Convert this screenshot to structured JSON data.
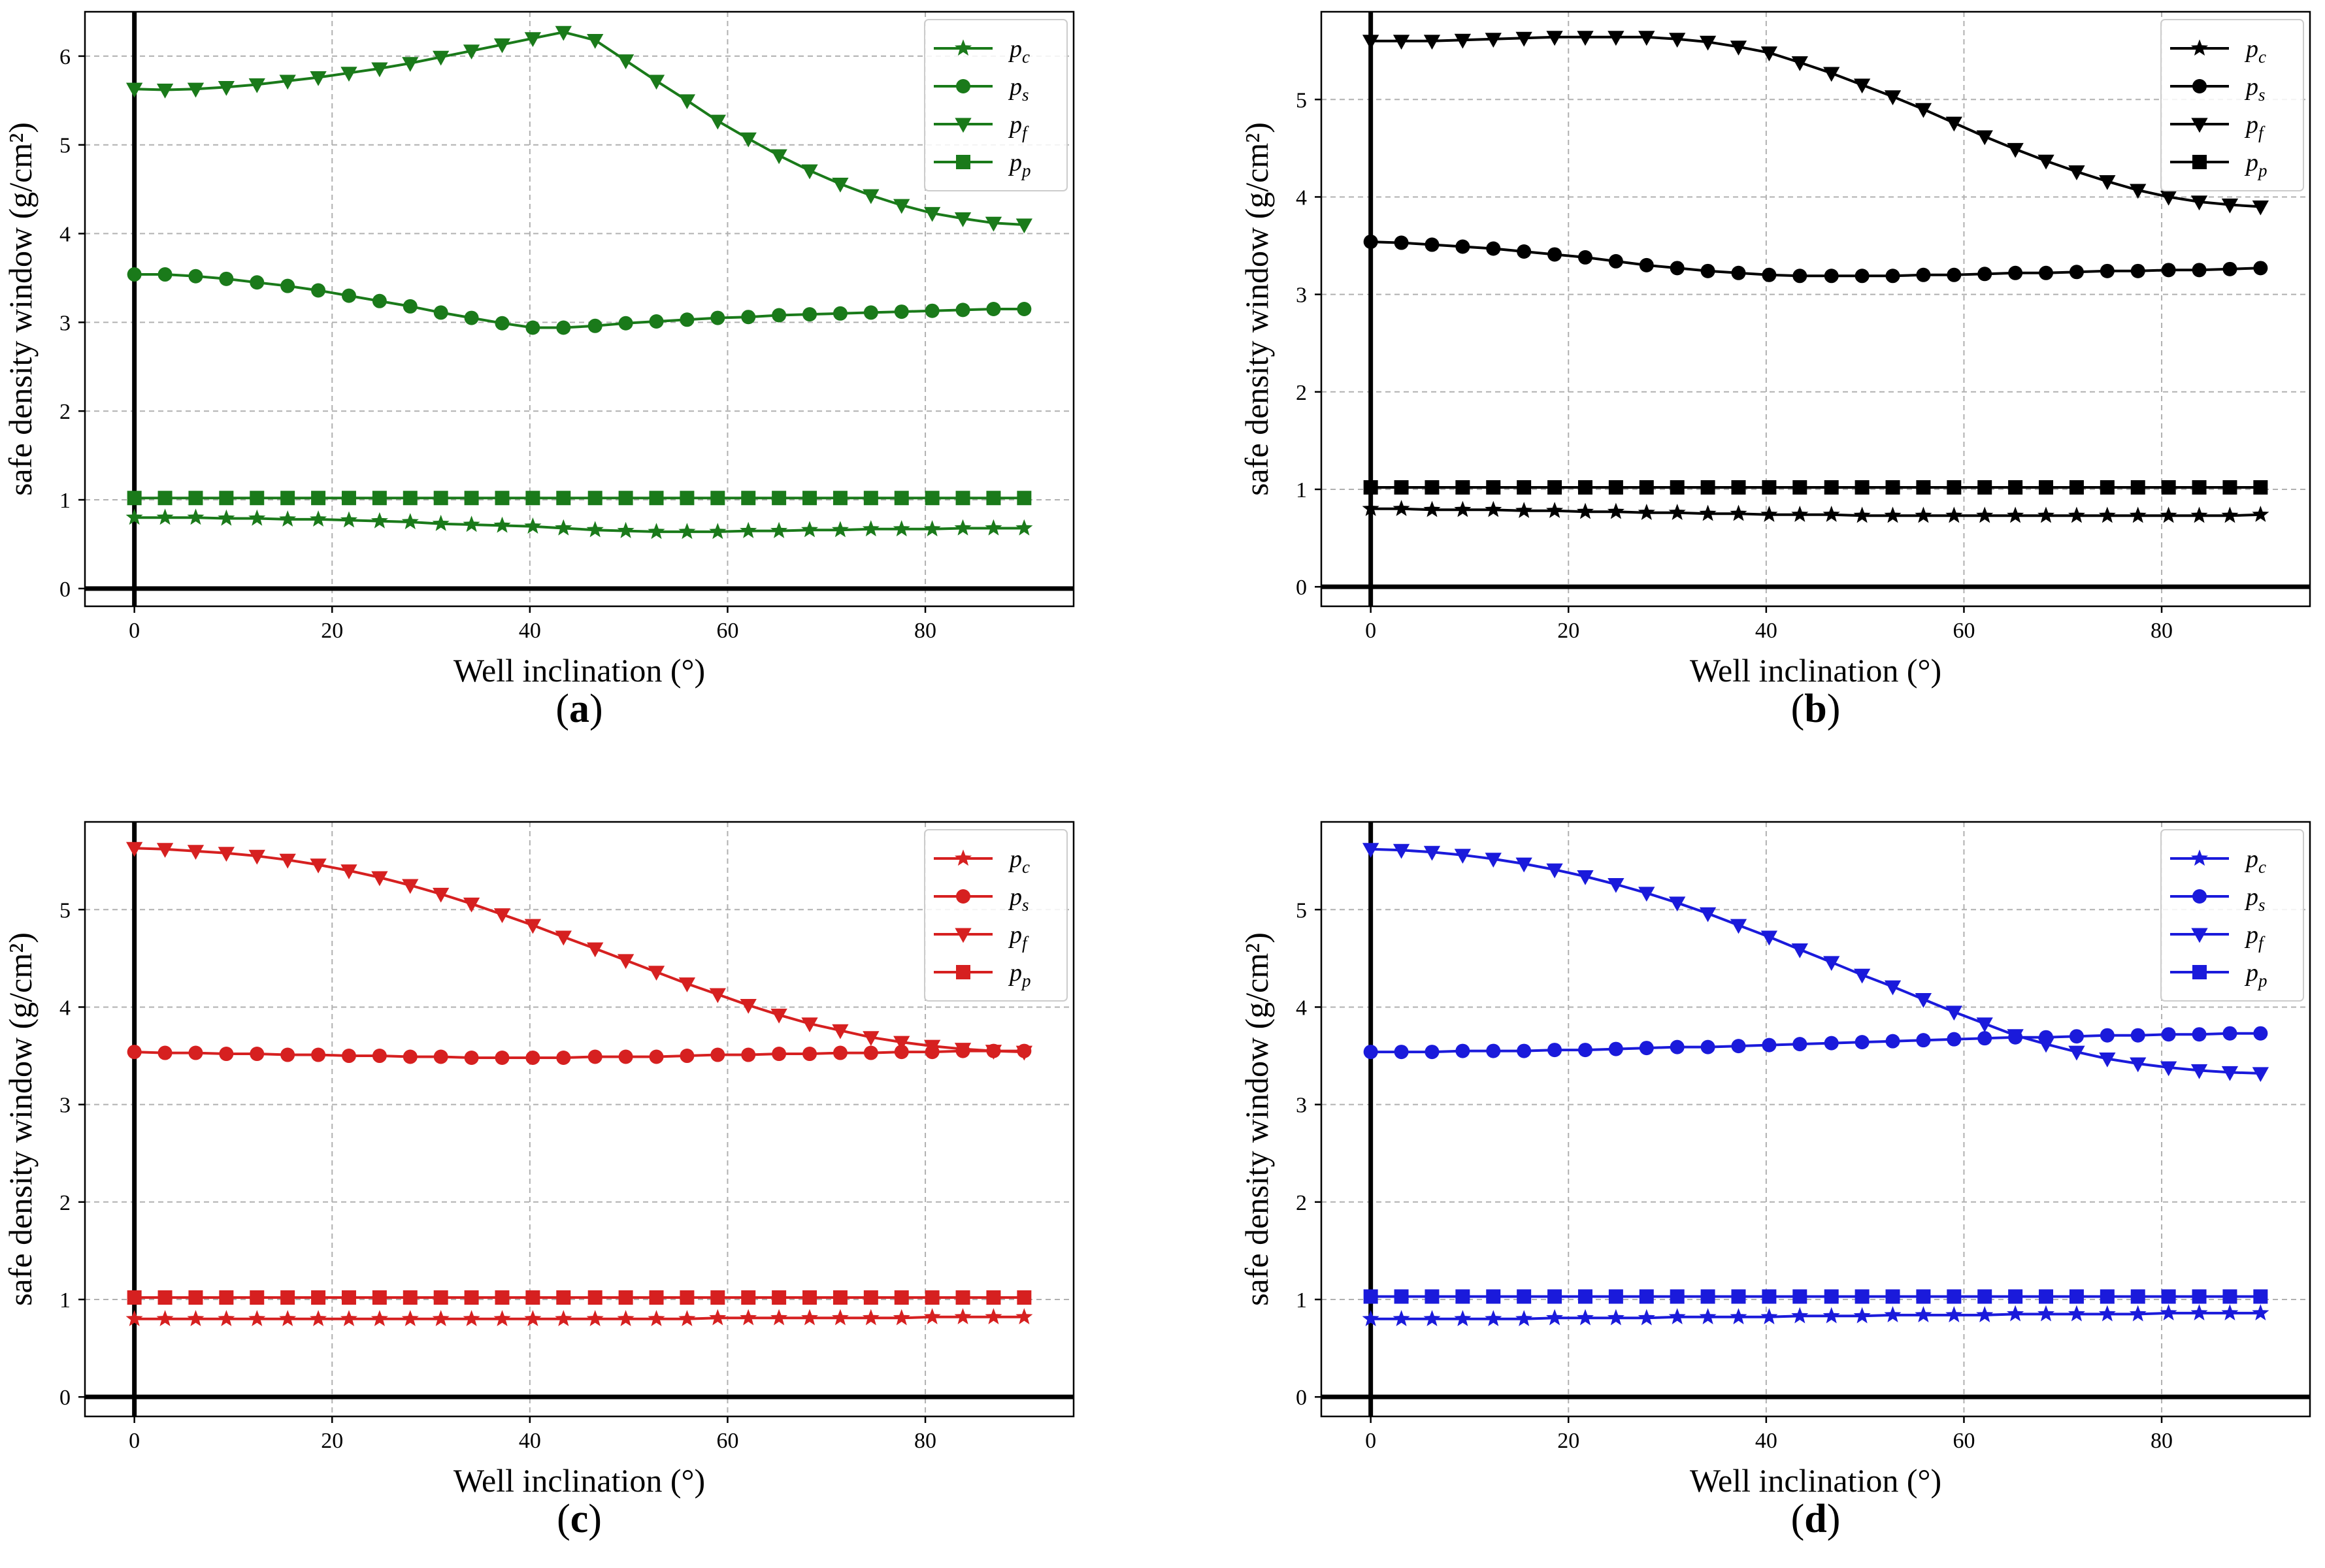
{
  "chart_data": [
    {
      "id": "a",
      "panel_label": "a",
      "type": "line",
      "color": "#1a7a1a",
      "xlabel": "Well inclination (°)",
      "ylabel": "safe density window (g/cm²)",
      "xlim": [
        -5,
        95
      ],
      "ylim": [
        -0.2,
        6.5
      ],
      "xticks": [
        0,
        20,
        40,
        60,
        80
      ],
      "yticks": [
        0,
        1,
        2,
        3,
        4,
        5,
        6
      ],
      "x": [
        0,
        3.1,
        6.2,
        9.3,
        12.4,
        15.5,
        18.6,
        21.7,
        24.8,
        27.9,
        31.0,
        34.1,
        37.2,
        40.3,
        43.4,
        46.6,
        49.7,
        52.8,
        55.9,
        59.0,
        62.1,
        65.2,
        68.3,
        71.4,
        74.5,
        77.6,
        80.7,
        83.8,
        86.9,
        90.0
      ],
      "series": [
        {
          "name": "pc",
          "label_base": "p",
          "label_sub": "c",
          "marker": "star",
          "values": [
            0.8,
            0.8,
            0.8,
            0.79,
            0.79,
            0.78,
            0.78,
            0.77,
            0.76,
            0.75,
            0.73,
            0.72,
            0.71,
            0.7,
            0.68,
            0.66,
            0.65,
            0.64,
            0.64,
            0.64,
            0.65,
            0.65,
            0.66,
            0.66,
            0.67,
            0.67,
            0.67,
            0.68,
            0.68,
            0.68
          ]
        },
        {
          "name": "ps",
          "label_base": "p",
          "label_sub": "s",
          "marker": "circle",
          "values": [
            3.54,
            3.54,
            3.52,
            3.49,
            3.45,
            3.41,
            3.36,
            3.3,
            3.24,
            3.18,
            3.11,
            3.05,
            2.99,
            2.94,
            2.94,
            2.96,
            2.99,
            3.01,
            3.03,
            3.05,
            3.06,
            3.08,
            3.09,
            3.1,
            3.11,
            3.12,
            3.13,
            3.14,
            3.15,
            3.15
          ]
        },
        {
          "name": "pf",
          "label_base": "p",
          "label_sub": "f",
          "marker": "triangle-down",
          "values": [
            5.63,
            5.62,
            5.63,
            5.65,
            5.68,
            5.72,
            5.76,
            5.81,
            5.86,
            5.92,
            5.99,
            6.06,
            6.13,
            6.2,
            6.27,
            6.18,
            5.95,
            5.72,
            5.5,
            5.27,
            5.07,
            4.88,
            4.71,
            4.56,
            4.43,
            4.32,
            4.23,
            4.17,
            4.12,
            4.1
          ]
        },
        {
          "name": "pp",
          "label_base": "p",
          "label_sub": "p",
          "marker": "square",
          "values": [
            1.02,
            1.02,
            1.02,
            1.02,
            1.02,
            1.02,
            1.02,
            1.02,
            1.02,
            1.02,
            1.02,
            1.02,
            1.02,
            1.02,
            1.02,
            1.02,
            1.02,
            1.02,
            1.02,
            1.02,
            1.02,
            1.02,
            1.02,
            1.02,
            1.02,
            1.02,
            1.02,
            1.02,
            1.02,
            1.02
          ]
        }
      ]
    },
    {
      "id": "b",
      "panel_label": "b",
      "type": "line",
      "color": "#000000",
      "xlabel": "Well inclination (°)",
      "ylabel": "safe density window (g/cm²)",
      "xlim": [
        -5,
        95
      ],
      "ylim": [
        -0.2,
        5.9
      ],
      "xticks": [
        0,
        20,
        40,
        60,
        80
      ],
      "yticks": [
        0,
        1,
        2,
        3,
        4,
        5
      ],
      "x": [
        0,
        3.1,
        6.2,
        9.3,
        12.4,
        15.5,
        18.6,
        21.7,
        24.8,
        27.9,
        31.0,
        34.1,
        37.2,
        40.3,
        43.4,
        46.6,
        49.7,
        52.8,
        55.9,
        59.0,
        62.1,
        65.2,
        68.3,
        71.4,
        74.5,
        77.6,
        80.7,
        83.8,
        86.9,
        90.0
      ],
      "series": [
        {
          "name": "pc",
          "label_base": "p",
          "label_sub": "c",
          "marker": "star",
          "values": [
            0.8,
            0.8,
            0.79,
            0.79,
            0.79,
            0.78,
            0.78,
            0.77,
            0.77,
            0.76,
            0.76,
            0.75,
            0.75,
            0.74,
            0.74,
            0.74,
            0.73,
            0.73,
            0.73,
            0.73,
            0.73,
            0.73,
            0.73,
            0.73,
            0.73,
            0.73,
            0.73,
            0.73,
            0.73,
            0.74
          ]
        },
        {
          "name": "ps",
          "label_base": "p",
          "label_sub": "s",
          "marker": "circle",
          "values": [
            3.54,
            3.53,
            3.51,
            3.49,
            3.47,
            3.44,
            3.41,
            3.38,
            3.34,
            3.3,
            3.27,
            3.24,
            3.22,
            3.2,
            3.19,
            3.19,
            3.19,
            3.19,
            3.2,
            3.2,
            3.21,
            3.22,
            3.22,
            3.23,
            3.24,
            3.24,
            3.25,
            3.25,
            3.26,
            3.27
          ]
        },
        {
          "name": "pf",
          "label_base": "p",
          "label_sub": "f",
          "marker": "triangle-down",
          "values": [
            5.6,
            5.6,
            5.6,
            5.61,
            5.62,
            5.63,
            5.64,
            5.64,
            5.64,
            5.64,
            5.62,
            5.59,
            5.54,
            5.48,
            5.38,
            5.27,
            5.15,
            5.03,
            4.9,
            4.76,
            4.62,
            4.49,
            4.37,
            4.26,
            4.16,
            4.07,
            4.0,
            3.95,
            3.92,
            3.9
          ]
        },
        {
          "name": "pp",
          "label_base": "p",
          "label_sub": "p",
          "marker": "square",
          "values": [
            1.02,
            1.02,
            1.02,
            1.02,
            1.02,
            1.02,
            1.02,
            1.02,
            1.02,
            1.02,
            1.02,
            1.02,
            1.02,
            1.02,
            1.02,
            1.02,
            1.02,
            1.02,
            1.02,
            1.02,
            1.02,
            1.02,
            1.02,
            1.02,
            1.02,
            1.02,
            1.02,
            1.02,
            1.02,
            1.02
          ]
        }
      ]
    },
    {
      "id": "c",
      "panel_label": "c",
      "type": "line",
      "color": "#d62020",
      "xlabel": "Well inclination (°)",
      "ylabel": "safe density window (g/cm²)",
      "xlim": [
        -5,
        95
      ],
      "ylim": [
        -0.2,
        5.9
      ],
      "xticks": [
        0,
        20,
        40,
        60,
        80
      ],
      "yticks": [
        0,
        1,
        2,
        3,
        4,
        5
      ],
      "x": [
        0,
        3.1,
        6.2,
        9.3,
        12.4,
        15.5,
        18.6,
        21.7,
        24.8,
        27.9,
        31.0,
        34.1,
        37.2,
        40.3,
        43.4,
        46.6,
        49.7,
        52.8,
        55.9,
        59.0,
        62.1,
        65.2,
        68.3,
        71.4,
        74.5,
        77.6,
        80.7,
        83.8,
        86.9,
        90.0
      ],
      "series": [
        {
          "name": "pc",
          "label_base": "p",
          "label_sub": "c",
          "marker": "star",
          "values": [
            0.8,
            0.8,
            0.8,
            0.8,
            0.8,
            0.8,
            0.8,
            0.8,
            0.8,
            0.8,
            0.8,
            0.8,
            0.8,
            0.8,
            0.8,
            0.8,
            0.8,
            0.8,
            0.8,
            0.81,
            0.81,
            0.81,
            0.81,
            0.81,
            0.81,
            0.81,
            0.82,
            0.82,
            0.82,
            0.82
          ]
        },
        {
          "name": "ps",
          "label_base": "p",
          "label_sub": "s",
          "marker": "circle",
          "values": [
            3.54,
            3.53,
            3.53,
            3.52,
            3.52,
            3.51,
            3.51,
            3.5,
            3.5,
            3.49,
            3.49,
            3.48,
            3.48,
            3.48,
            3.48,
            3.49,
            3.49,
            3.49,
            3.5,
            3.51,
            3.51,
            3.52,
            3.52,
            3.53,
            3.53,
            3.54,
            3.54,
            3.55,
            3.55,
            3.55
          ]
        },
        {
          "name": "pf",
          "label_base": "p",
          "label_sub": "f",
          "marker": "triangle-down",
          "values": [
            5.63,
            5.62,
            5.6,
            5.58,
            5.55,
            5.51,
            5.46,
            5.4,
            5.33,
            5.25,
            5.16,
            5.06,
            4.95,
            4.84,
            4.72,
            4.6,
            4.48,
            4.36,
            4.24,
            4.13,
            4.02,
            3.92,
            3.83,
            3.76,
            3.69,
            3.64,
            3.6,
            3.57,
            3.55,
            3.54
          ]
        },
        {
          "name": "pp",
          "label_base": "p",
          "label_sub": "p",
          "marker": "square",
          "values": [
            1.02,
            1.02,
            1.02,
            1.02,
            1.02,
            1.02,
            1.02,
            1.02,
            1.02,
            1.02,
            1.02,
            1.02,
            1.02,
            1.02,
            1.02,
            1.02,
            1.02,
            1.02,
            1.02,
            1.02,
            1.02,
            1.02,
            1.02,
            1.02,
            1.02,
            1.02,
            1.02,
            1.02,
            1.02,
            1.02
          ]
        }
      ]
    },
    {
      "id": "d",
      "panel_label": "d",
      "type": "line",
      "color": "#1a1adb",
      "xlabel": "Well inclination (°)",
      "ylabel": "safe density window (g/cm²)",
      "xlim": [
        -5,
        95
      ],
      "ylim": [
        -0.2,
        5.9
      ],
      "xticks": [
        0,
        20,
        40,
        60,
        80
      ],
      "yticks": [
        0,
        1,
        2,
        3,
        4,
        5
      ],
      "x": [
        0,
        3.1,
        6.2,
        9.3,
        12.4,
        15.5,
        18.6,
        21.7,
        24.8,
        27.9,
        31.0,
        34.1,
        37.2,
        40.3,
        43.4,
        46.6,
        49.7,
        52.8,
        55.9,
        59.0,
        62.1,
        65.2,
        68.3,
        71.4,
        74.5,
        77.6,
        80.7,
        83.8,
        86.9,
        90.0
      ],
      "series": [
        {
          "name": "pc",
          "label_base": "p",
          "label_sub": "c",
          "marker": "star",
          "values": [
            0.8,
            0.8,
            0.8,
            0.8,
            0.8,
            0.8,
            0.81,
            0.81,
            0.81,
            0.81,
            0.82,
            0.82,
            0.82,
            0.82,
            0.83,
            0.83,
            0.83,
            0.84,
            0.84,
            0.84,
            0.84,
            0.85,
            0.85,
            0.85,
            0.85,
            0.85,
            0.86,
            0.86,
            0.86,
            0.86
          ]
        },
        {
          "name": "ps",
          "label_base": "p",
          "label_sub": "s",
          "marker": "circle",
          "values": [
            3.54,
            3.54,
            3.54,
            3.55,
            3.55,
            3.55,
            3.56,
            3.56,
            3.57,
            3.58,
            3.59,
            3.59,
            3.6,
            3.61,
            3.62,
            3.63,
            3.64,
            3.65,
            3.66,
            3.67,
            3.68,
            3.69,
            3.69,
            3.7,
            3.71,
            3.71,
            3.72,
            3.72,
            3.73,
            3.73
          ]
        },
        {
          "name": "pf",
          "label_base": "p",
          "label_sub": "f",
          "marker": "triangle-down",
          "values": [
            5.62,
            5.61,
            5.59,
            5.56,
            5.52,
            5.47,
            5.41,
            5.34,
            5.26,
            5.17,
            5.07,
            4.96,
            4.84,
            4.72,
            4.59,
            4.46,
            4.33,
            4.21,
            4.08,
            3.95,
            3.83,
            3.71,
            3.62,
            3.54,
            3.47,
            3.42,
            3.38,
            3.35,
            3.33,
            3.32
          ]
        },
        {
          "name": "pp",
          "label_base": "p",
          "label_sub": "p",
          "marker": "square",
          "values": [
            1.03,
            1.03,
            1.03,
            1.03,
            1.03,
            1.03,
            1.03,
            1.03,
            1.03,
            1.03,
            1.03,
            1.03,
            1.03,
            1.03,
            1.03,
            1.03,
            1.03,
            1.03,
            1.03,
            1.03,
            1.03,
            1.03,
            1.03,
            1.03,
            1.03,
            1.03,
            1.03,
            1.03,
            1.03,
            1.03
          ]
        }
      ]
    }
  ]
}
